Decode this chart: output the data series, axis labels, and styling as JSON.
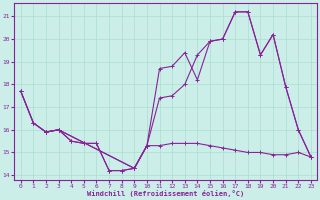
{
  "xlabel": "Windchill (Refroidissement éolien,°C)",
  "background_color": "#cceee8",
  "grid_color": "#aaddcc",
  "line_color": "#882299",
  "xlim": [
    -0.5,
    23.5
  ],
  "ylim": [
    13.8,
    21.6
  ],
  "yticks": [
    14,
    15,
    16,
    17,
    18,
    19,
    20,
    21
  ],
  "xticks": [
    0,
    1,
    2,
    3,
    4,
    5,
    6,
    7,
    8,
    9,
    10,
    11,
    12,
    13,
    14,
    15,
    16,
    17,
    18,
    19,
    20,
    21,
    22,
    23
  ],
  "line1_x": [
    0,
    1,
    2,
    3,
    4,
    5,
    6,
    7,
    8,
    9,
    10,
    11,
    12,
    13,
    14,
    15,
    16,
    17,
    18,
    19,
    20,
    21,
    22,
    23
  ],
  "line1_y": [
    17.7,
    16.3,
    15.9,
    16.0,
    15.5,
    15.4,
    15.4,
    14.2,
    14.2,
    14.3,
    15.3,
    15.3,
    15.4,
    15.4,
    15.4,
    15.3,
    15.2,
    15.1,
    15.0,
    15.0,
    14.9,
    14.9,
    15.0,
    14.8
  ],
  "line2_x": [
    0,
    1,
    2,
    3,
    9,
    10,
    11,
    12,
    13,
    14,
    15,
    16,
    17,
    18,
    19,
    20,
    21,
    22,
    23
  ],
  "line2_y": [
    17.7,
    16.3,
    15.9,
    16.0,
    14.3,
    15.3,
    18.7,
    18.8,
    19.4,
    18.2,
    19.9,
    20.0,
    21.2,
    21.2,
    19.3,
    20.2,
    17.9,
    16.0,
    14.8
  ],
  "line3_x": [
    0,
    1,
    2,
    3,
    9,
    10,
    11,
    12,
    13,
    14,
    15,
    16,
    17,
    18,
    19,
    20,
    21,
    22,
    23
  ],
  "line3_y": [
    17.7,
    16.3,
    15.9,
    16.0,
    14.3,
    15.3,
    17.4,
    17.5,
    18.0,
    19.3,
    19.9,
    20.0,
    21.2,
    21.2,
    19.3,
    20.2,
    17.9,
    16.0,
    14.8
  ],
  "line4_x": [
    2,
    3,
    4,
    5,
    6,
    7,
    8,
    9,
    10
  ],
  "line4_y": [
    15.9,
    16.0,
    15.5,
    15.4,
    15.4,
    14.2,
    14.2,
    14.3,
    15.3
  ]
}
